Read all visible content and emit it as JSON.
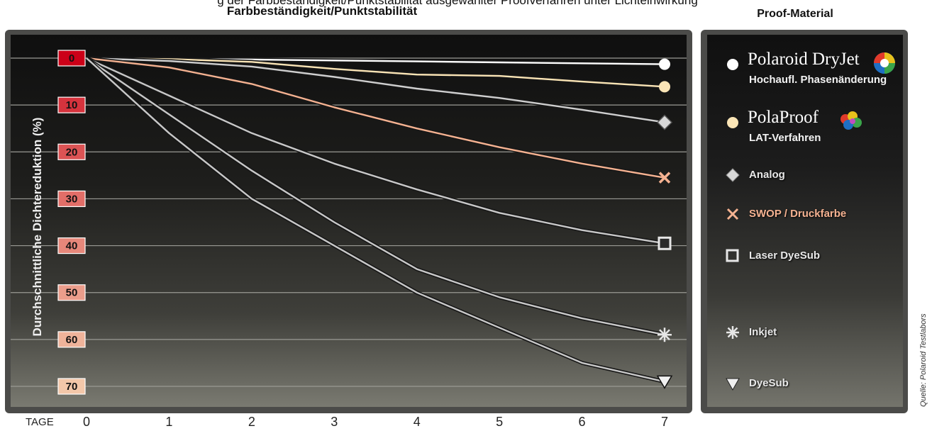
{
  "header": {
    "clipped_text": "g der Farbbeständigkeit/Punktstabilität ausgewählter Proofverfahren unter Lichteinwirkung",
    "title": "Farbbeständigkeit/Punktstabilität",
    "legend_title": "Proof-Material"
  },
  "source_note": "Quelle: Polaroid Testlabors",
  "x_axis_label": "TAGE",
  "legend": {
    "polaroid_brand": "Polaroid DryJet",
    "polaroid_sub": "Hochaufl. Phasenänderung",
    "polaproof_brand": "PolaProof",
    "polaproof_sub": "LAT-Verfahren",
    "analog": "Analog",
    "swop": "SWOP / Druckfarbe",
    "laser": "Laser DyeSub",
    "inkjet": "Inkjet",
    "dyesub": "DyeSub"
  },
  "colors": {
    "frame": "#4b4b49",
    "tick_box_top": "#cc0018",
    "tick_box_bottom": "#f3c7a9",
    "line_white": "#ffffff",
    "line_cream": "#fbe5b6",
    "line_peach": "#f5b291",
    "line_gray": "#c8c8c8"
  },
  "chart_data": {
    "type": "line",
    "title": "Farbbeständigkeit/Punktstabilität",
    "xlabel": "TAGE",
    "ylabel": "Durchschnittliche Dichtereduktion (%)",
    "x": [
      0,
      1,
      2,
      3,
      4,
      5,
      6,
      7
    ],
    "xlim": [
      0,
      7
    ],
    "ylim": [
      0,
      70
    ],
    "y_inverted": true,
    "x_ticks": [
      "0",
      "1",
      "2",
      "3",
      "4",
      "5",
      "6",
      "7"
    ],
    "y_ticks": [
      "0",
      "10",
      "20",
      "30",
      "40",
      "50",
      "60",
      "70"
    ],
    "grid": true,
    "legend_position": "right panel",
    "series": [
      {
        "name": "Polaroid DryJet",
        "values": [
          0,
          0.2,
          0.3,
          0.5,
          0.7,
          0.9,
          1.1,
          1.3
        ],
        "color": "#ffffff",
        "marker": "circle"
      },
      {
        "name": "PolaProof",
        "values": [
          0,
          0.2,
          0.8,
          2.3,
          3.5,
          3.8,
          5.0,
          6.1
        ],
        "color": "#fbe5b6",
        "marker": "circle"
      },
      {
        "name": "Analog",
        "values": [
          0,
          0.6,
          1.8,
          4.0,
          6.5,
          8.5,
          11.0,
          13.7
        ],
        "color": "#cfcfcf",
        "marker": "diamond"
      },
      {
        "name": "SWOP / Druckfarbe",
        "values": [
          0,
          2.0,
          5.5,
          10.5,
          15.0,
          19.0,
          22.5,
          25.5
        ],
        "color": "#f5b291",
        "marker": "x"
      },
      {
        "name": "Laser DyeSub",
        "values": [
          0,
          8.0,
          16.0,
          22.5,
          28.0,
          33.0,
          36.7,
          39.5
        ],
        "color": "#c8c8c8",
        "marker": "square"
      },
      {
        "name": "Inkjet",
        "values": [
          0,
          12.0,
          24.0,
          35.0,
          45.0,
          51.0,
          55.5,
          59.0
        ],
        "color": "#c8c8c8",
        "marker": "asterisk"
      },
      {
        "name": "DyeSub",
        "values": [
          0,
          16.0,
          30.0,
          40.0,
          50.0,
          57.5,
          65.0,
          69.0
        ],
        "color": "#c8c8c8",
        "marker": "triangle"
      }
    ]
  }
}
